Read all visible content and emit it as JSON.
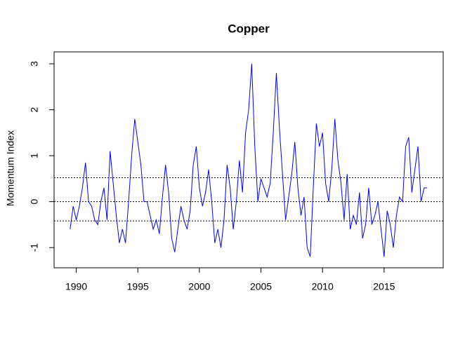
{
  "chart_data": {
    "type": "line",
    "title": "Copper",
    "y_label": "Momentum Index",
    "x": [
      1989.5,
      1989.75,
      1990,
      1990.25,
      1990.5,
      1990.75,
      1991,
      1991.25,
      1991.5,
      1991.75,
      1992,
      1992.25,
      1992.5,
      1992.75,
      1993,
      1993.25,
      1993.5,
      1993.75,
      1994,
      1994.25,
      1994.5,
      1994.75,
      1995,
      1995.25,
      1995.5,
      1995.75,
      1996,
      1996.25,
      1996.5,
      1996.75,
      1997,
      1997.25,
      1997.5,
      1997.75,
      1998,
      1998.25,
      1998.5,
      1998.75,
      1999,
      1999.25,
      1999.5,
      1999.75,
      2000,
      2000.25,
      2000.5,
      2000.75,
      2001,
      2001.25,
      2001.5,
      2001.75,
      2002,
      2002.25,
      2002.5,
      2002.75,
      2003,
      2003.25,
      2003.5,
      2003.75,
      2004,
      2004.25,
      2004.5,
      2004.75,
      2005,
      2005.25,
      2005.5,
      2005.75,
      2006,
      2006.25,
      2006.5,
      2006.75,
      2007,
      2007.25,
      2007.5,
      2007.75,
      2008,
      2008.25,
      2008.5,
      2008.75,
      2009,
      2009.25,
      2009.5,
      2009.75,
      2010,
      2010.25,
      2010.5,
      2010.75,
      2011,
      2011.25,
      2011.5,
      2011.75,
      2012,
      2012.25,
      2012.5,
      2012.75,
      2013,
      2013.25,
      2013.5,
      2013.75,
      2014,
      2014.25,
      2014.5,
      2014.75,
      2015,
      2015.25,
      2015.5,
      2015.75,
      2016,
      2016.25,
      2016.5,
      2016.75,
      2017,
      2017.25,
      2017.5,
      2017.75,
      2018,
      2018.25,
      2018.5
    ],
    "series": [
      {
        "color": "#0000ff",
        "values": [
          -0.6,
          -0.1,
          -0.4,
          -0.1,
          0.3,
          0.85,
          0.0,
          -0.1,
          -0.4,
          -0.5,
          0.0,
          0.3,
          -0.4,
          1.1,
          0.4,
          -0.3,
          -0.9,
          -0.6,
          -0.9,
          0.0,
          1.0,
          1.8,
          1.3,
          0.8,
          0.0,
          0.0,
          -0.3,
          -0.6,
          -0.4,
          -0.7,
          0.1,
          0.8,
          0.2,
          -0.8,
          -1.1,
          -0.6,
          -0.1,
          -0.4,
          -0.6,
          -0.2,
          0.8,
          1.2,
          0.3,
          -0.1,
          0.2,
          0.7,
          0.0,
          -0.9,
          -0.6,
          -1.0,
          -0.4,
          0.8,
          0.3,
          -0.6,
          0.0,
          0.9,
          0.2,
          1.5,
          2.0,
          3.0,
          1.2,
          0.0,
          0.5,
          0.3,
          0.1,
          0.4,
          1.5,
          2.8,
          1.6,
          0.6,
          -0.4,
          0.1,
          0.6,
          1.3,
          0.3,
          -0.3,
          0.1,
          -1.0,
          -1.2,
          0.3,
          1.7,
          1.2,
          1.5,
          0.4,
          0.0,
          0.7,
          1.8,
          0.9,
          0.4,
          -0.4,
          0.6,
          -0.6,
          -0.3,
          -0.5,
          0.2,
          -0.8,
          -0.5,
          0.3,
          -0.5,
          -0.3,
          0.0,
          -0.6,
          -1.2,
          -0.2,
          -0.5,
          -1.0,
          -0.3,
          0.1,
          0.0,
          1.2,
          1.4,
          0.2,
          0.7,
          1.2,
          0.0,
          0.3,
          0.3
        ]
      }
    ],
    "hlines": [
      0.52,
      0,
      -0.42
    ],
    "xlim": [
      1988.2,
      2019.8
    ],
    "xticks": [
      1990,
      1995,
      2000,
      2005,
      2010,
      2015
    ],
    "ylim": [
      -1.44,
      3.26
    ],
    "yticks": [
      -1,
      0,
      1,
      2,
      3
    ]
  }
}
